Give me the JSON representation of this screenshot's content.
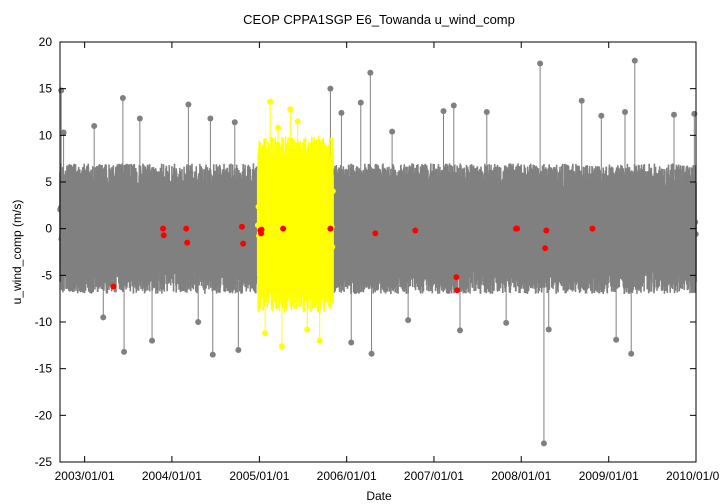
{
  "chart_data": {
    "type": "scatter",
    "title": "CEOP CPPA1SGP E6_Towanda  u_wind_comp",
    "xlabel": "Date",
    "ylabel": "u_wind_comp (m/s)",
    "ylim": [
      -25,
      20
    ],
    "xlim": [
      "2002/09/20",
      "2010/01/01"
    ],
    "yticks": [
      -25,
      -20,
      -15,
      -10,
      -5,
      0,
      5,
      10,
      15,
      20
    ],
    "xticks": [
      "2003/01/01",
      "2004/01/01",
      "2005/01/01",
      "2006/01/01",
      "2007/01/01",
      "2008/01/01",
      "2009/01/01",
      "2010/01/01"
    ],
    "grid": false,
    "colors": {
      "main_series": "#808080",
      "highlight_series": "#ffff00",
      "flagged_points": "#ff0000"
    },
    "series": [
      {
        "role": "main",
        "color": "#808080",
        "band_center": 0,
        "range": [
          -7,
          7
        ],
        "spikes": [
          [
            "2002/09/25",
            14.8
          ],
          [
            "2002/10/05",
            10.3
          ],
          [
            "2003/02/10",
            11
          ],
          [
            "2003/03/20",
            -9.5
          ],
          [
            "2003/06/10",
            14
          ],
          [
            "2003/06/15",
            -13.2
          ],
          [
            "2003/08/20",
            11.8
          ],
          [
            "2003/10/10",
            -12
          ],
          [
            "2004/03/10",
            13.3
          ],
          [
            "2004/04/20",
            -10
          ],
          [
            "2004/06/10",
            11.8
          ],
          [
            "2004/06/20",
            -13.5
          ],
          [
            "2004/09/20",
            11.4
          ],
          [
            "2004/10/05",
            -13
          ],
          [
            "2005/10/25",
            15
          ],
          [
            "2005/12/10",
            12.4
          ],
          [
            "2006/01/20",
            -12.2
          ],
          [
            "2006/03/01",
            13.5
          ],
          [
            "2006/04/10",
            16.7
          ],
          [
            "2006/04/15",
            -13.4
          ],
          [
            "2006/07/10",
            10.4
          ],
          [
            "2006/09/15",
            -9.8
          ],
          [
            "2007/02/10",
            12.6
          ],
          [
            "2007/03/25",
            13.2
          ],
          [
            "2007/04/20",
            -10.9
          ],
          [
            "2007/08/10",
            12.5
          ],
          [
            "2007/10/30",
            -10.1
          ],
          [
            "2008/03/20",
            17.7
          ],
          [
            "2008/04/05",
            -23
          ],
          [
            "2008/04/25",
            -10.8
          ],
          [
            "2008/09/10",
            13.7
          ],
          [
            "2008/12/01",
            12.1
          ],
          [
            "2009/02/01",
            -11.9
          ],
          [
            "2009/03/10",
            12.5
          ],
          [
            "2009/04/05",
            -13.4
          ],
          [
            "2009/04/20",
            18
          ],
          [
            "2009/10/01",
            12.2
          ],
          [
            "2009/12/25",
            12.3
          ]
        ]
      },
      {
        "role": "highlight",
        "color": "#ffff00",
        "period": [
          "2004/12/25",
          "2005/11/05"
        ],
        "range": [
          -9,
          10
        ],
        "spikes": [
          [
            "2005/02/15",
            13.6
          ],
          [
            "2005/03/20",
            10.8
          ],
          [
            "2005/05/10",
            12.8
          ],
          [
            "2005/04/05",
            -12.6
          ],
          [
            "2005/07/20",
            -10.8
          ],
          [
            "2005/09/10",
            -12
          ],
          [
            "2005/06/10",
            11.5
          ],
          [
            "2005/01/25",
            -11.2
          ]
        ]
      },
      {
        "role": "flagged",
        "color": "#ff0000",
        "points": [
          [
            "2003/05/01",
            -6.2
          ],
          [
            "2003/11/25",
            0
          ],
          [
            "2003/11/28",
            -0.7
          ],
          [
            "2004/03/01",
            0
          ],
          [
            "2004/03/05",
            -1.5
          ],
          [
            "2004/10/20",
            0.2
          ],
          [
            "2004/10/25",
            -1.6
          ],
          [
            "2005/01/05",
            -0.2
          ],
          [
            "2005/01/08",
            -0.5
          ],
          [
            "2005/01/10",
            -0.1
          ],
          [
            "2005/04/10",
            0
          ],
          [
            "2005/10/25",
            0
          ],
          [
            "2006/05/01",
            -0.5
          ],
          [
            "2006/10/15",
            -0.2
          ],
          [
            "2007/04/05",
            -5.2
          ],
          [
            "2007/04/08",
            -6.6
          ],
          [
            "2007/12/10",
            0
          ],
          [
            "2007/12/15",
            0
          ],
          [
            "2008/04/10",
            -2.1
          ],
          [
            "2008/04/15",
            -0.2
          ],
          [
            "2008/10/25",
            0
          ]
        ]
      }
    ]
  }
}
